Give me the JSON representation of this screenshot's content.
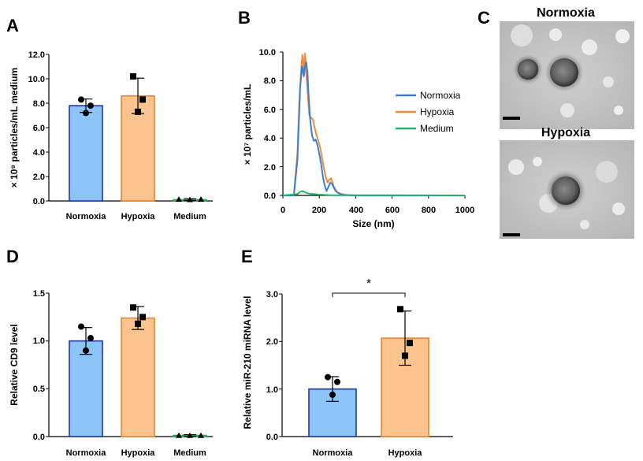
{
  "panels": {
    "a": "A",
    "b": "B",
    "c": "C",
    "d": "D",
    "e": "E"
  },
  "colors": {
    "blue_fill": "#8CC4F7",
    "blue_edge": "#2233AA",
    "orange_fill": "#FBC48E",
    "orange_edge": "#E8842B",
    "green": "#22AA55",
    "line_blue": "#3A7FD5",
    "line_orange": "#F28A3C",
    "line_green": "#23B46B"
  },
  "chart_data": [
    {
      "id": "A",
      "type": "bar",
      "categories": [
        "Normoxia",
        "Hypoxia",
        "Medium"
      ],
      "values": [
        7.8,
        8.6,
        0.1
      ],
      "errors": [
        0.55,
        1.45,
        0.08
      ],
      "points": [
        [
          8.3,
          7.8,
          7.2
        ],
        [
          10.2,
          8.3,
          7.3
        ],
        [
          0.12,
          0.1,
          0.13
        ]
      ],
      "ylabel": "× 10⁹ particles/mL medium",
      "ylim": [
        0,
        12
      ],
      "yticks": [
        "0.0",
        "2.0",
        "4.0",
        "6.0",
        "8.0",
        "10.0",
        "12.0"
      ]
    },
    {
      "id": "B",
      "type": "line",
      "xlabel": "Size (nm)",
      "ylabel": "× 10⁷ particles/mL",
      "xlim": [
        0,
        1000
      ],
      "ylim": [
        0,
        10
      ],
      "xticks": [
        "0",
        "200",
        "400",
        "600",
        "800",
        "1000"
      ],
      "yticks": [
        "0.0",
        "2.0",
        "4.0",
        "6.0",
        "8.0",
        "10.0"
      ],
      "legend": [
        "Normoxia",
        "Hypoxia",
        "Medium"
      ],
      "series": [
        {
          "name": "Normoxia",
          "x": [
            0,
            60,
            80,
            95,
            105,
            115,
            120,
            128,
            135,
            142,
            150,
            160,
            170,
            180,
            190,
            200,
            210,
            220,
            230,
            240,
            250,
            260,
            270,
            290,
            320,
            400,
            1000
          ],
          "y": [
            0,
            0,
            2.5,
            7.5,
            9.0,
            8.3,
            8.9,
            9.3,
            8.6,
            6.8,
            5.3,
            4.2,
            3.8,
            3.9,
            3.5,
            2.9,
            2.2,
            1.3,
            0.7,
            0.3,
            0.6,
            0.9,
            0.8,
            0.3,
            0.05,
            0,
            0
          ]
        },
        {
          "name": "Hypoxia",
          "x": [
            0,
            60,
            80,
            90,
            100,
            108,
            115,
            122,
            130,
            138,
            145,
            155,
            165,
            175,
            185,
            195,
            205,
            215,
            225,
            235,
            245,
            255,
            265,
            280,
            300,
            340,
            400,
            1000
          ],
          "y": [
            0,
            0,
            3.0,
            6.5,
            8.8,
            9.8,
            8.7,
            9.9,
            8.2,
            6.8,
            5.6,
            5.4,
            5.3,
            4.7,
            4.2,
            3.8,
            3.3,
            2.6,
            1.9,
            1.3,
            0.9,
            1.1,
            1.2,
            0.6,
            0.2,
            0.05,
            0,
            0
          ]
        },
        {
          "name": "Medium",
          "x": [
            0,
            80,
            95,
            110,
            125,
            145,
            170,
            195,
            220,
            260,
            1000
          ],
          "y": [
            0,
            0.1,
            0.25,
            0.3,
            0.2,
            0.12,
            0.1,
            0.06,
            0.05,
            0.02,
            0
          ]
        }
      ]
    },
    {
      "id": "C",
      "type": "image",
      "titles": [
        "Normoxia",
        "Hypoxia"
      ]
    },
    {
      "id": "D",
      "type": "bar",
      "categories": [
        "Normoxia",
        "Hypoxia",
        "Medium"
      ],
      "values": [
        1.0,
        1.24,
        0.01
      ],
      "errors": [
        0.14,
        0.12,
        0.01
      ],
      "points": [
        [
          1.15,
          1.03,
          0.9
        ],
        [
          1.35,
          1.25,
          1.18
        ],
        [
          0.01,
          0.01,
          0.01
        ]
      ],
      "ylabel": "Relative CD9 level",
      "ylim": [
        0,
        1.5
      ],
      "yticks": [
        "0.0",
        "0.5",
        "1.0",
        "1.5"
      ]
    },
    {
      "id": "E",
      "type": "bar",
      "categories": [
        "Normoxia",
        "Hypoxia"
      ],
      "values": [
        1.0,
        2.07
      ],
      "errors": [
        0.26,
        0.57
      ],
      "points": [
        [
          1.25,
          1.15,
          0.88
        ],
        [
          2.68,
          1.97,
          1.7
        ]
      ],
      "ylabel": "Relative miR-210 miRNA level",
      "ylim": [
        0,
        3
      ],
      "yticks": [
        "0.0",
        "1.0",
        "2.0",
        "3.0"
      ],
      "annotation": "*"
    }
  ]
}
